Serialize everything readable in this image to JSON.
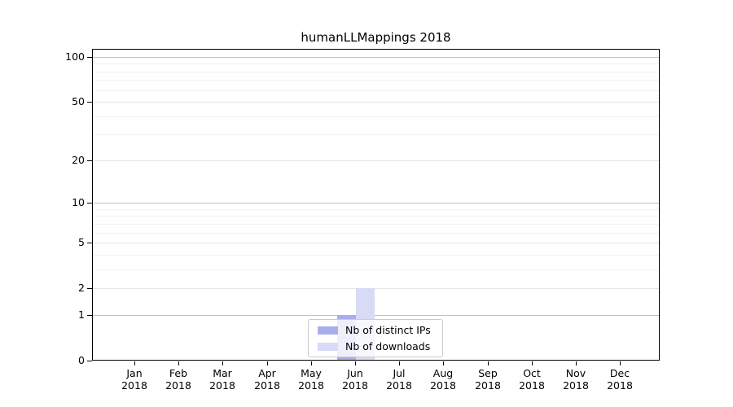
{
  "chart_data": {
    "type": "bar",
    "title": "humanLLMappings 2018",
    "x_categories": [
      "Jan",
      "Feb",
      "Mar",
      "Apr",
      "May",
      "Jun",
      "Jul",
      "Aug",
      "Sep",
      "Oct",
      "Nov",
      "Dec"
    ],
    "x_year": "2018",
    "series": [
      {
        "name": "Nb of distinct IPs",
        "color": "#a9aeea",
        "values": [
          0,
          0,
          0,
          0,
          0,
          1,
          0,
          0,
          0,
          0,
          0,
          0
        ]
      },
      {
        "name": "Nb of downloads",
        "color": "#d8daf6",
        "values": [
          0,
          0,
          0,
          0,
          0,
          2,
          0,
          0,
          0,
          0,
          0,
          0
        ]
      }
    ],
    "yscale": "log1p",
    "ylim": [
      0,
      117
    ],
    "yticks": [
      0,
      1,
      2,
      5,
      10,
      20,
      50,
      100
    ],
    "yticks_minor": [
      3,
      4,
      6,
      7,
      8,
      9,
      30,
      40,
      60,
      70,
      80,
      90
    ],
    "grid": "horizontal",
    "legend_position": "lower center",
    "colors": {
      "background": "#ffffff",
      "spine": "#000000",
      "grid_decade": "#c2c2c2",
      "grid_labeled": "#e6e6e6",
      "grid_minor": "#f1f1f1",
      "bar_distinct_ips": "#a9aeea",
      "bar_downloads": "#d8daf6",
      "legend_border": "#cccccc"
    }
  }
}
